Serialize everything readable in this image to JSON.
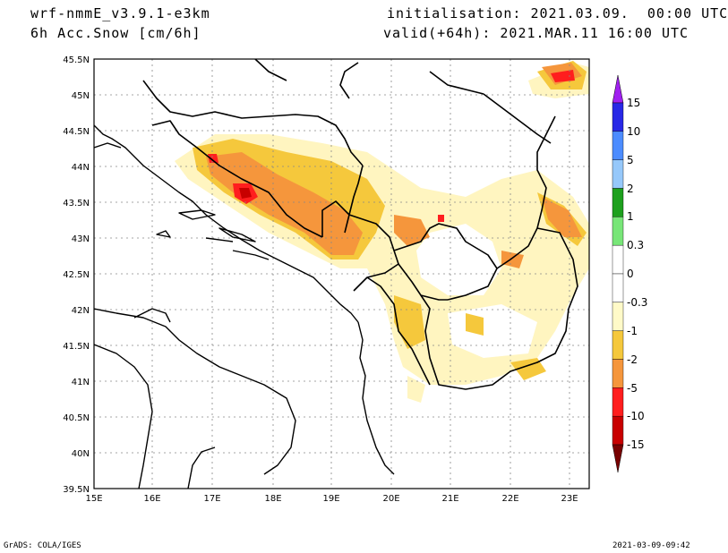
{
  "header": {
    "model": "wrf-nmmE_v3.9.1-e3km",
    "variable": "6h Acc.Snow [cm/6h]",
    "init_label": "initialisation: 2021.03.09.  00:00 UTC",
    "valid_label": "valid(+64h): 2021.MAR.11 16:00 UTC"
  },
  "map": {
    "lat_labels": [
      "45.5N",
      "45N",
      "44.5N",
      "44N",
      "43.5N",
      "43N",
      "42.5N",
      "42N",
      "41.5N",
      "41N",
      "40.5N",
      "40N",
      "39.5N"
    ],
    "lon_labels": [
      "15E",
      "16E",
      "17E",
      "18E",
      "19E",
      "20E",
      "21E",
      "22E",
      "23E"
    ]
  },
  "colorbar": {
    "labels": [
      "15",
      "10",
      "5",
      "2",
      "1",
      "0.3",
      "0",
      "-0.3",
      "-1",
      "-2",
      "-5",
      "-10",
      "-15"
    ],
    "colors": [
      "#a020f0",
      "#2828e6",
      "#4c8cff",
      "#96c8fa",
      "#1ea01e",
      "#78e678",
      "#ffffff",
      "#fffac8",
      "#f5c83c",
      "#f5963c",
      "#ff1e1e",
      "#c80000",
      "#780000"
    ]
  },
  "footer": {
    "left": "GrADS: COLA/IGES",
    "right": "2021-03-09-09:42"
  }
}
